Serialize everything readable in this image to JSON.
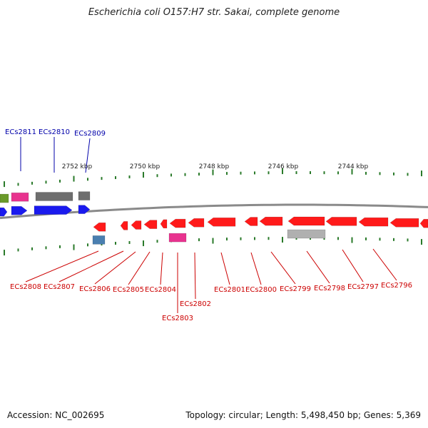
{
  "title": "Escherichia coli O157:H7 str. Sakai, complete genome",
  "footer": {
    "accession": "Accession: NC_002695",
    "summary": "Topology: circular; Length: 5,498,450 bp; Genes: 5,369"
  },
  "colors": {
    "backbone": "#8a8a8a",
    "tick": "#2a7a2a",
    "forward_label": "#0000aa",
    "reverse_label": "#cc0000",
    "red_gene": "#ff1a1a",
    "blue_gene": "#1a1aee",
    "gray_gene": "#6e6e6e",
    "light_gray_gene": "#b0b0b0",
    "pink_gene": "#e8338f",
    "steel_gene": "#4a7fb0",
    "olive_gene": "#6a9a2a"
  },
  "position_labels": [
    "2752 kbp",
    "2750 kbp",
    "2748 kbp",
    "2746 kbp",
    "2744 kbp"
  ],
  "forward_gene_labels": [
    "ECs2811",
    "ECs2810",
    "ECs2809"
  ],
  "reverse_gene_labels": [
    "ECs2808",
    "ECs2807",
    "ECs2806",
    "ECs2805",
    "ECs2804",
    "ECs2803",
    "ECs2802",
    "ECs2801",
    "ECs2800",
    "ECs2799",
    "ECs2798",
    "ECs2797",
    "ECs2796"
  ]
}
